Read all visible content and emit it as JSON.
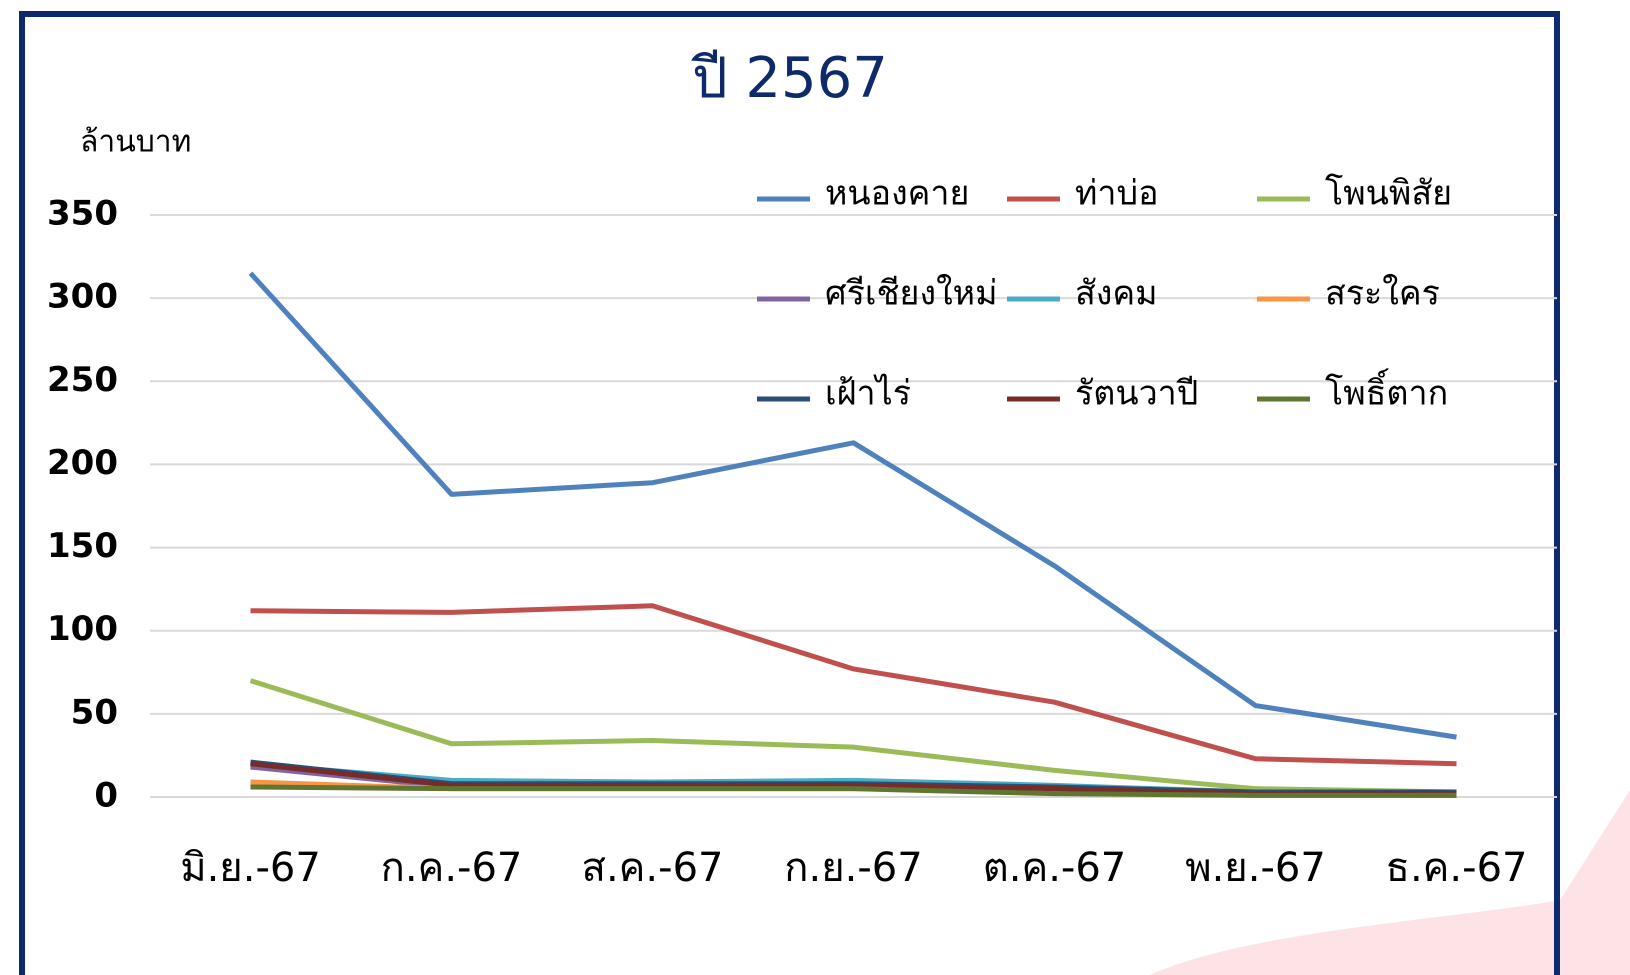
{
  "chart_data": {
    "type": "line",
    "title": "ปี 2567",
    "y_label": "ล้านบาท",
    "categories": [
      "มิ.ย.-67",
      "ก.ค.-67",
      "ส.ค.-67",
      "ก.ย.-67",
      "ต.ค.-67",
      "พ.ย.-67",
      "ธ.ค.-67"
    ],
    "series": [
      {
        "name": "หนองคาย",
        "color": "#4f81bd",
        "values": [
          315,
          182,
          189,
          213,
          139,
          55,
          36
        ]
      },
      {
        "name": "ท่าบ่อ",
        "color": "#c0504d",
        "values": [
          112,
          111,
          115,
          77,
          57,
          23,
          20
        ]
      },
      {
        "name": "โพนพิสัย",
        "color": "#9bbb59",
        "values": [
          70,
          32,
          34,
          30,
          16,
          5,
          3
        ]
      },
      {
        "name": "ศรีเชียงใหม่",
        "color": "#8064a2",
        "values": [
          18,
          6,
          6,
          6,
          4,
          2,
          1
        ]
      },
      {
        "name": "สังคม",
        "color": "#4bacc6",
        "values": [
          20,
          10,
          9,
          10,
          7,
          3,
          2
        ]
      },
      {
        "name": "สระใคร",
        "color": "#f79646",
        "values": [
          9,
          5,
          5,
          5,
          3,
          1,
          1
        ]
      },
      {
        "name": "เฝ้าไร่",
        "color": "#2c4d75",
        "values": [
          21,
          8,
          8,
          8,
          6,
          3,
          3
        ]
      },
      {
        "name": "รัตนวาปี",
        "color": "#772c2a",
        "values": [
          20,
          7,
          7,
          7,
          5,
          2,
          2
        ]
      },
      {
        "name": "โพธิ์ตาก",
        "color": "#5f7530",
        "values": [
          6,
          5,
          5,
          5,
          2,
          1,
          1
        ]
      }
    ],
    "ylim": [
      0,
      350
    ],
    "yticks": [
      0,
      50,
      100,
      150,
      200,
      250,
      300,
      350
    ],
    "grid": true
  }
}
